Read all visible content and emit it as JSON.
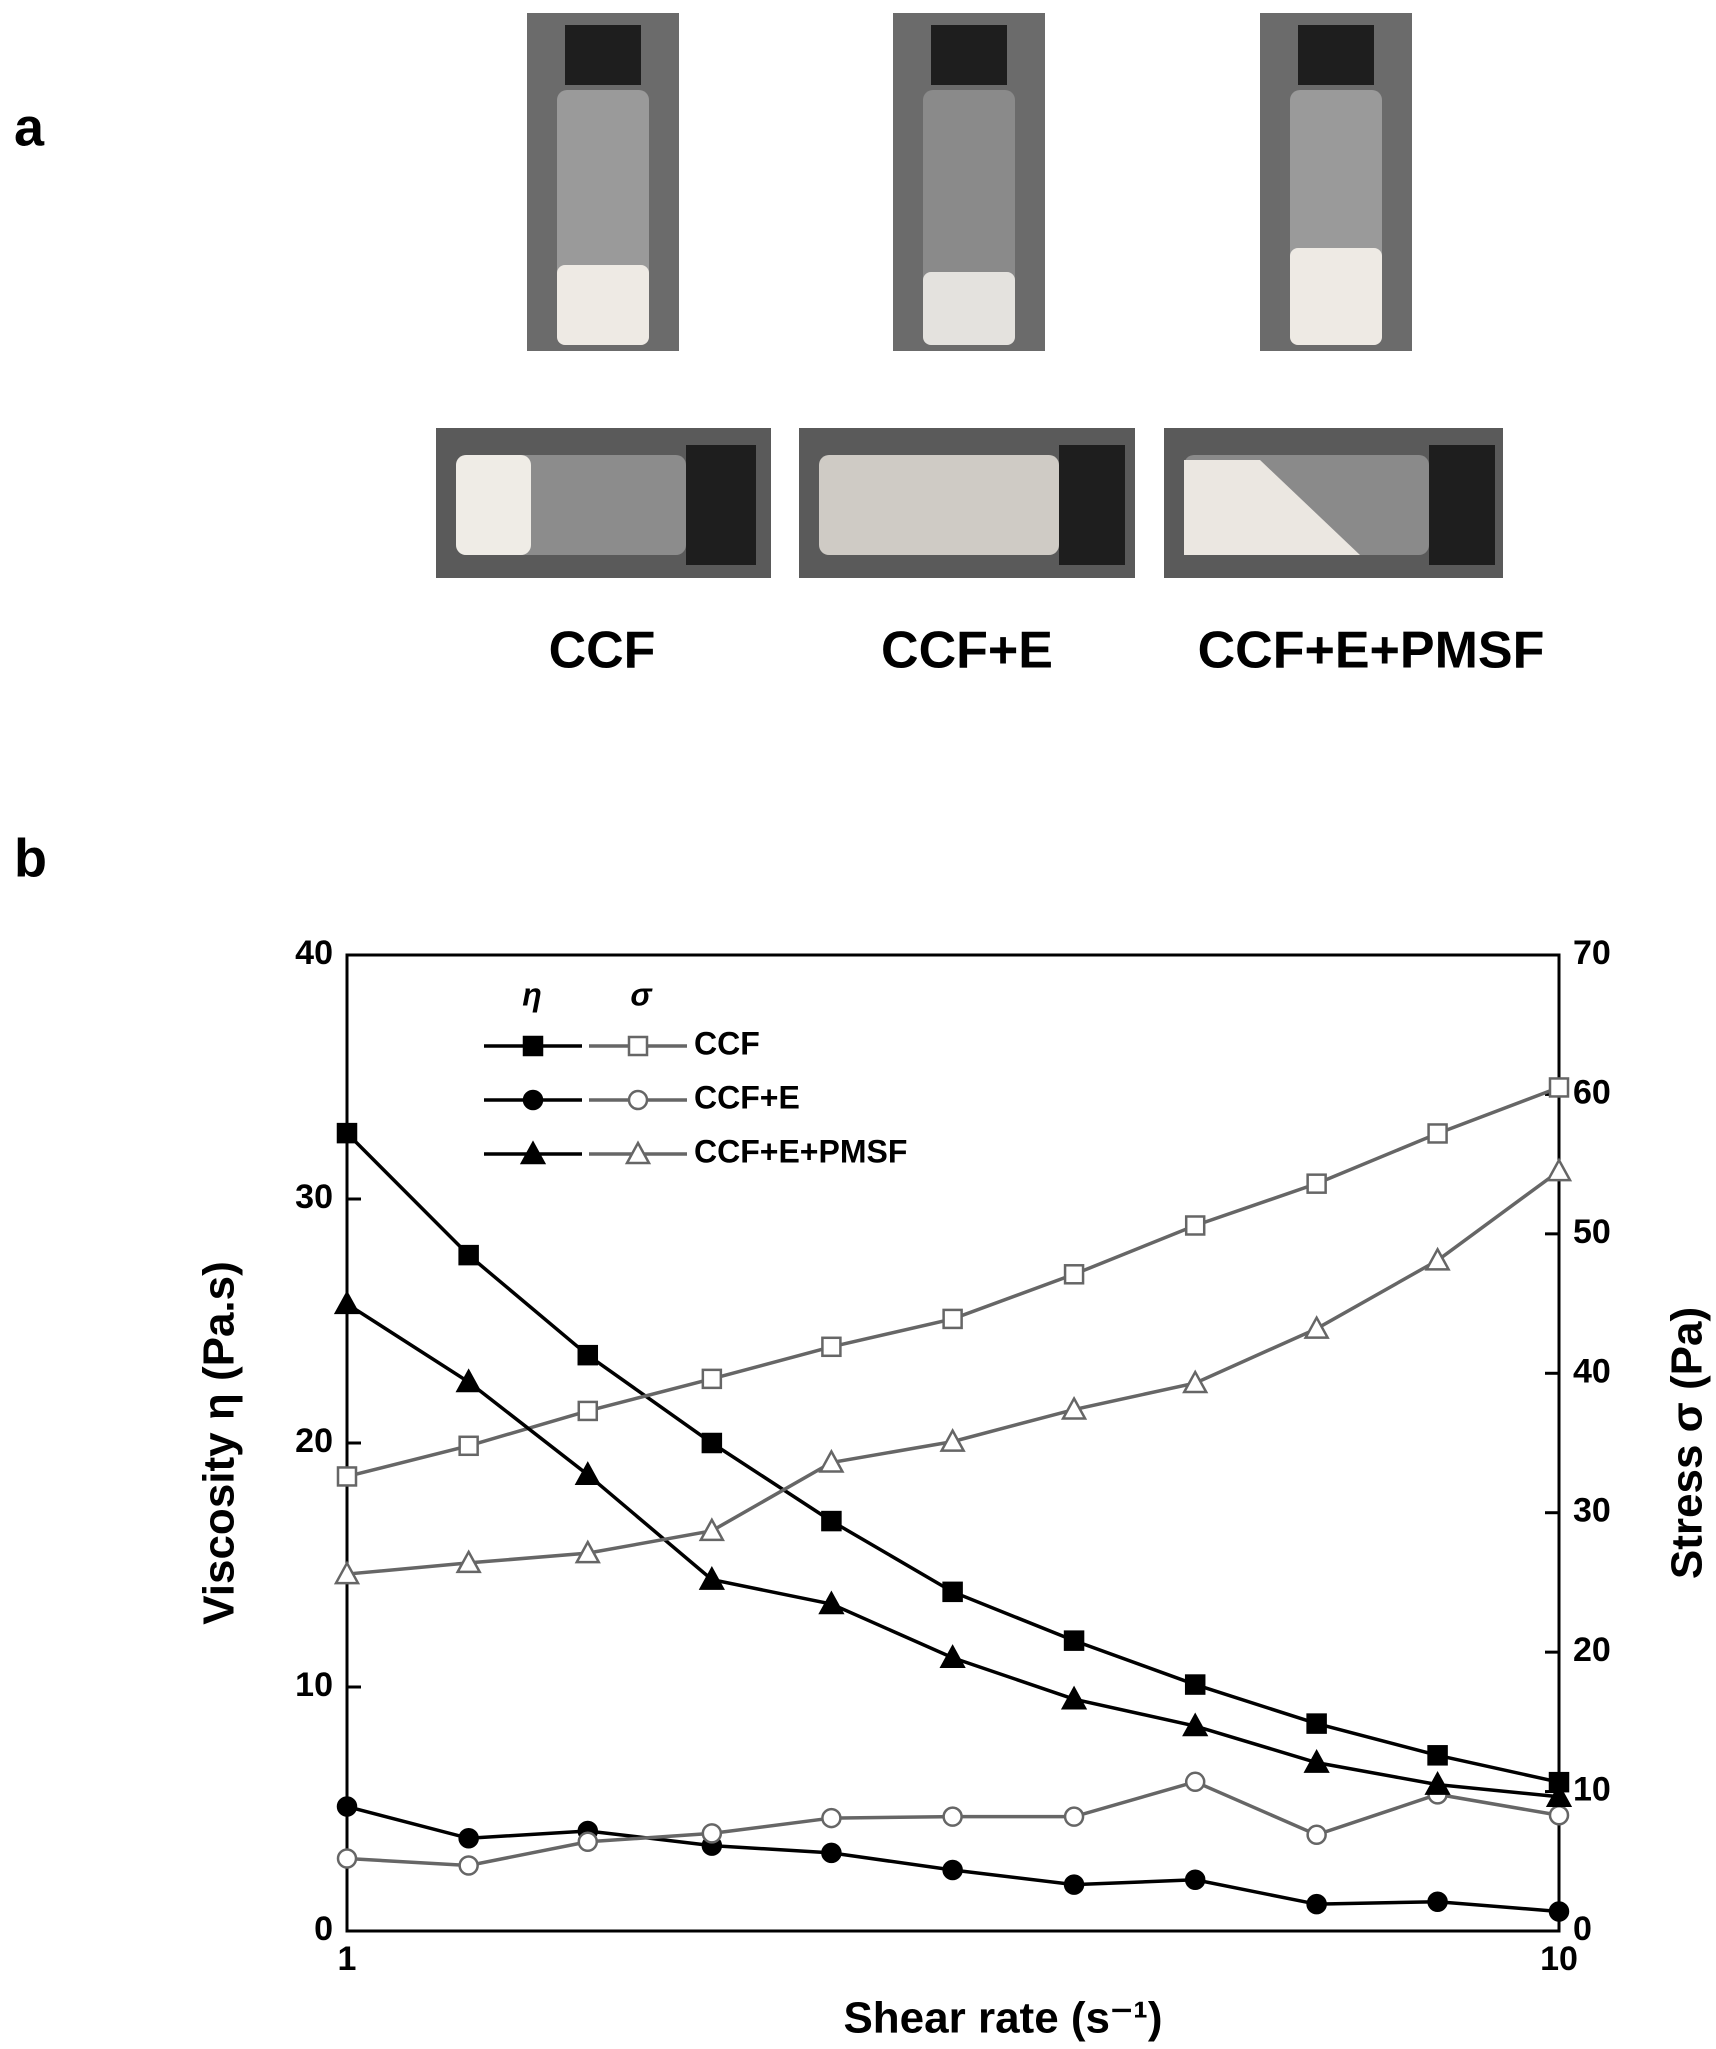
{
  "panel_labels": [
    "a",
    "b"
  ],
  "photo_labels": [
    "CCF",
    "CCF+E",
    "CCF+E+PMSF"
  ],
  "chart_data": {
    "type": "line",
    "xlabel": "Shear rate (s⁻¹)",
    "ylabel": "Viscosity η (Pa.s)",
    "y2label": "Stress σ (Pa)",
    "legend_headers": [
      "η",
      "σ"
    ],
    "x": [
      1,
      1.26,
      1.58,
      2,
      2.51,
      3.16,
      3.98,
      5.01,
      6.31,
      7.94,
      10
    ],
    "log_x": true,
    "xlim": [
      1,
      10
    ],
    "xticks": [
      1,
      10
    ],
    "ylim": [
      0,
      40
    ],
    "yticks": [
      0,
      10,
      20,
      30,
      40
    ],
    "y2lim": [
      0,
      70
    ],
    "y2ticks": [
      0,
      10,
      20,
      30,
      40,
      50,
      60,
      70
    ],
    "eta_color": "#000000",
    "sigma_color": "#666666",
    "series": [
      {
        "name": "CCF",
        "marker": "square",
        "values": [
          32.7,
          27.7,
          23.6,
          20.0,
          16.8,
          13.9,
          11.9,
          10.1,
          8.5,
          7.2,
          6.1
        ],
        "y2_values": [
          32.6,
          34.8,
          37.3,
          39.6,
          41.9,
          43.9,
          47.1,
          50.6,
          53.6,
          57.2,
          60.5
        ]
      },
      {
        "name": "CCF+E",
        "marker": "circle",
        "values": [
          5.1,
          3.8,
          4.1,
          3.5,
          3.2,
          2.5,
          1.9,
          2.1,
          1.1,
          1.2,
          0.8
        ],
        "y2_values": [
          5.2,
          4.7,
          6.4,
          7.0,
          8.1,
          8.2,
          8.2,
          10.7,
          6.9,
          9.8,
          8.3
        ]
      },
      {
        "name": "CCF+E+PMSF",
        "marker": "triangle",
        "values": [
          25.7,
          22.5,
          18.7,
          14.4,
          13.4,
          11.2,
          9.5,
          8.4,
          6.9,
          6.0,
          5.5
        ],
        "y2_values": [
          25.6,
          26.4,
          27.1,
          28.7,
          33.6,
          35.1,
          37.4,
          39.3,
          43.2,
          48.1,
          54.5
        ]
      }
    ]
  }
}
